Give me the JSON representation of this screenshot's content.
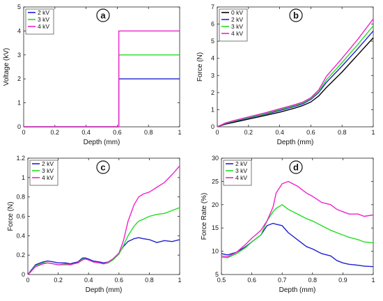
{
  "colors": {
    "0 kV": "#000000",
    "2 kV": "#1f1fd2",
    "3 kV": "#22dd22",
    "4 kV": "#ee22cc",
    "axis": "#222222"
  },
  "chart_data": [
    {
      "id": "a",
      "badge": "a",
      "type": "line",
      "xlabel": "Depth (mm)",
      "ylabel": "Voltage (kV)",
      "xlim": [
        0,
        1
      ],
      "ylim": [
        0,
        5
      ],
      "xticks": [
        0,
        0.2,
        0.4,
        0.6,
        0.8,
        1
      ],
      "xticklabels": [
        "0",
        "0.2",
        "0.4",
        "0.6",
        "0.8",
        "1"
      ],
      "yticks": [
        0,
        1,
        2,
        3,
        4,
        5
      ],
      "yticklabels": [
        "0",
        "1",
        "2",
        "3",
        "4",
        "5"
      ],
      "legend_position": "top-left",
      "series": [
        {
          "name": "2 kV",
          "color": "#1f1fd2",
          "x": [
            0,
            0.6,
            0.61,
            0.61,
            1.0
          ],
          "y": [
            0,
            0,
            0,
            2,
            2
          ]
        },
        {
          "name": "3 kV",
          "color": "#22dd22",
          "x": [
            0,
            0.6,
            0.61,
            0.61,
            1.0
          ],
          "y": [
            0,
            0,
            0,
            3,
            3
          ]
        },
        {
          "name": "4 kV",
          "color": "#ee22cc",
          "x": [
            0,
            0.6,
            0.61,
            0.61,
            1.0
          ],
          "y": [
            0,
            0,
            0,
            4,
            4
          ]
        }
      ]
    },
    {
      "id": "b",
      "badge": "b",
      "type": "line",
      "xlabel": "Depth (mm)",
      "ylabel": "Force (N)",
      "xlim": [
        0,
        1
      ],
      "ylim": [
        0,
        7
      ],
      "xticks": [
        0,
        0.2,
        0.4,
        0.6,
        0.8,
        1
      ],
      "xticklabels": [
        "0",
        "0.2",
        "0.4",
        "0.6",
        "0.8",
        "1"
      ],
      "yticks": [
        0,
        1,
        2,
        3,
        4,
        5,
        6,
        7
      ],
      "yticklabels": [
        "0",
        "1",
        "2",
        "3",
        "4",
        "5",
        "6",
        "7"
      ],
      "legend_position": "top-left",
      "series": [
        {
          "name": "0 kV",
          "color": "#000000",
          "x": [
            0,
            0.05,
            0.1,
            0.2,
            0.3,
            0.4,
            0.5,
            0.55,
            0.6,
            0.65,
            0.7,
            0.8,
            0.9,
            1.0
          ],
          "y": [
            0,
            0.15,
            0.25,
            0.45,
            0.65,
            0.85,
            1.1,
            1.25,
            1.45,
            1.8,
            2.3,
            3.2,
            4.2,
            5.2
          ]
        },
        {
          "name": "2 kV",
          "color": "#1f1fd2",
          "x": [
            0,
            0.05,
            0.1,
            0.2,
            0.3,
            0.4,
            0.5,
            0.55,
            0.6,
            0.65,
            0.7,
            0.8,
            0.9,
            1.0
          ],
          "y": [
            0,
            0.18,
            0.3,
            0.52,
            0.72,
            0.95,
            1.2,
            1.35,
            1.6,
            2.0,
            2.6,
            3.55,
            4.55,
            5.6
          ]
        },
        {
          "name": "3 kV",
          "color": "#22dd22",
          "x": [
            0,
            0.05,
            0.1,
            0.2,
            0.3,
            0.4,
            0.5,
            0.55,
            0.6,
            0.65,
            0.7,
            0.8,
            0.9,
            1.0
          ],
          "y": [
            0,
            0.2,
            0.32,
            0.55,
            0.75,
            1.0,
            1.25,
            1.4,
            1.65,
            2.05,
            2.75,
            3.75,
            4.8,
            5.9
          ]
        },
        {
          "name": "4 kV",
          "color": "#ee22cc",
          "x": [
            0,
            0.05,
            0.1,
            0.2,
            0.3,
            0.4,
            0.5,
            0.55,
            0.6,
            0.65,
            0.7,
            0.8,
            0.9,
            1.0
          ],
          "y": [
            0,
            0.22,
            0.35,
            0.58,
            0.8,
            1.05,
            1.3,
            1.45,
            1.7,
            2.15,
            2.95,
            4.0,
            5.1,
            6.3
          ]
        }
      ]
    },
    {
      "id": "c",
      "badge": "c",
      "type": "line",
      "xlabel": "Depth (mm)",
      "ylabel": "Force (N)",
      "xlim": [
        0,
        1
      ],
      "ylim": [
        0,
        1.2
      ],
      "xticks": [
        0,
        0.2,
        0.4,
        0.6,
        0.8,
        1
      ],
      "xticklabels": [
        "0",
        "0.2",
        "0.4",
        "0.6",
        "0.8",
        "1"
      ],
      "yticks": [
        0,
        0.2,
        0.4,
        0.6,
        0.8,
        1,
        1.2
      ],
      "yticklabels": [
        "0",
        "0.2",
        "0.4",
        "0.6",
        "0.8",
        "1",
        "1.2"
      ],
      "legend_position": "top-left",
      "series": [
        {
          "name": "2 kV",
          "color": "#1f1fd2",
          "x": [
            0,
            0.02,
            0.05,
            0.1,
            0.13,
            0.17,
            0.2,
            0.25,
            0.28,
            0.3,
            0.33,
            0.36,
            0.38,
            0.4,
            0.43,
            0.47,
            0.5,
            0.53,
            0.56,
            0.6,
            0.63,
            0.66,
            0.7,
            0.73,
            0.76,
            0.8,
            0.85,
            0.9,
            0.95,
            1.0
          ],
          "y": [
            0,
            0.04,
            0.1,
            0.13,
            0.14,
            0.13,
            0.12,
            0.12,
            0.11,
            0.12,
            0.13,
            0.17,
            0.17,
            0.16,
            0.14,
            0.13,
            0.12,
            0.13,
            0.16,
            0.22,
            0.29,
            0.34,
            0.37,
            0.38,
            0.37,
            0.36,
            0.33,
            0.35,
            0.34,
            0.36
          ]
        },
        {
          "name": "3 kV",
          "color": "#22dd22",
          "x": [
            0,
            0.02,
            0.05,
            0.1,
            0.13,
            0.17,
            0.2,
            0.25,
            0.28,
            0.3,
            0.33,
            0.36,
            0.38,
            0.4,
            0.43,
            0.47,
            0.5,
            0.53,
            0.56,
            0.6,
            0.63,
            0.66,
            0.7,
            0.73,
            0.76,
            0.8,
            0.85,
            0.9,
            0.95,
            1.0
          ],
          "y": [
            0,
            0.03,
            0.09,
            0.12,
            0.12,
            0.11,
            0.1,
            0.1,
            0.1,
            0.11,
            0.12,
            0.16,
            0.16,
            0.15,
            0.13,
            0.12,
            0.11,
            0.12,
            0.15,
            0.21,
            0.3,
            0.4,
            0.5,
            0.55,
            0.57,
            0.6,
            0.62,
            0.63,
            0.66,
            0.69
          ]
        },
        {
          "name": "4 kV",
          "color": "#ee22cc",
          "x": [
            0,
            0.02,
            0.05,
            0.1,
            0.13,
            0.17,
            0.2,
            0.25,
            0.28,
            0.3,
            0.33,
            0.36,
            0.38,
            0.4,
            0.43,
            0.47,
            0.5,
            0.53,
            0.56,
            0.6,
            0.63,
            0.66,
            0.7,
            0.73,
            0.76,
            0.8,
            0.85,
            0.9,
            0.95,
            1.0
          ],
          "y": [
            0,
            0.03,
            0.08,
            0.11,
            0.12,
            0.11,
            0.1,
            0.11,
            0.1,
            0.11,
            0.12,
            0.15,
            0.16,
            0.15,
            0.13,
            0.12,
            0.11,
            0.13,
            0.16,
            0.22,
            0.35,
            0.55,
            0.72,
            0.8,
            0.83,
            0.85,
            0.9,
            0.95,
            1.03,
            1.12
          ]
        }
      ]
    },
    {
      "id": "d",
      "badge": "d",
      "type": "line",
      "xlabel": "Depth (mm)",
      "ylabel": "Force Rate (%)",
      "xlim": [
        0.5,
        1
      ],
      "ylim": [
        5,
        30
      ],
      "xticks": [
        0.5,
        0.6,
        0.7,
        0.8,
        0.9,
        1
      ],
      "xticklabels": [
        "0.5",
        "0.6",
        "0.7",
        "0.8",
        "0.9",
        "1"
      ],
      "yticks": [
        5,
        10,
        15,
        20,
        25,
        30
      ],
      "yticklabels": [
        "5",
        "10",
        "15",
        "20",
        "25",
        "30"
      ],
      "legend_position": "top-left",
      "series": [
        {
          "name": "2 kV",
          "color": "#1f1fd2",
          "x": [
            0.5,
            0.52,
            0.55,
            0.58,
            0.6,
            0.63,
            0.65,
            0.67,
            0.68,
            0.7,
            0.72,
            0.75,
            0.78,
            0.8,
            0.83,
            0.86,
            0.88,
            0.9,
            0.92,
            0.95,
            0.97,
            1.0
          ],
          "y": [
            9.5,
            9.2,
            9.8,
            11.0,
            12.0,
            13.5,
            15.5,
            16.0,
            15.8,
            15.5,
            14.0,
            12.5,
            11.0,
            10.5,
            9.5,
            9.0,
            8.0,
            7.5,
            7.2,
            7.0,
            6.8,
            6.7
          ]
        },
        {
          "name": "3 kV",
          "color": "#22dd22",
          "x": [
            0.5,
            0.52,
            0.55,
            0.58,
            0.6,
            0.63,
            0.65,
            0.67,
            0.68,
            0.7,
            0.72,
            0.75,
            0.78,
            0.8,
            0.83,
            0.86,
            0.88,
            0.9,
            0.92,
            0.95,
            0.97,
            1.0
          ],
          "y": [
            8.7,
            8.6,
            9.5,
            10.8,
            12.0,
            13.5,
            16.5,
            18.5,
            19.2,
            20.0,
            19.0,
            18.0,
            17.0,
            16.5,
            15.5,
            14.5,
            14.0,
            13.5,
            13.0,
            12.5,
            12.0,
            11.8
          ]
        },
        {
          "name": "4 kV",
          "color": "#ee22cc",
          "x": [
            0.5,
            0.52,
            0.55,
            0.58,
            0.6,
            0.63,
            0.65,
            0.67,
            0.68,
            0.7,
            0.72,
            0.75,
            0.78,
            0.8,
            0.83,
            0.86,
            0.88,
            0.9,
            0.92,
            0.95,
            0.97,
            1.0
          ],
          "y": [
            9.0,
            8.8,
            9.8,
            11.5,
            12.8,
            14.5,
            16.5,
            19.5,
            22.5,
            24.5,
            25.0,
            24.0,
            22.5,
            21.8,
            20.5,
            20.0,
            19.0,
            18.5,
            18.0,
            18.0,
            17.5,
            17.8
          ]
        }
      ]
    }
  ]
}
